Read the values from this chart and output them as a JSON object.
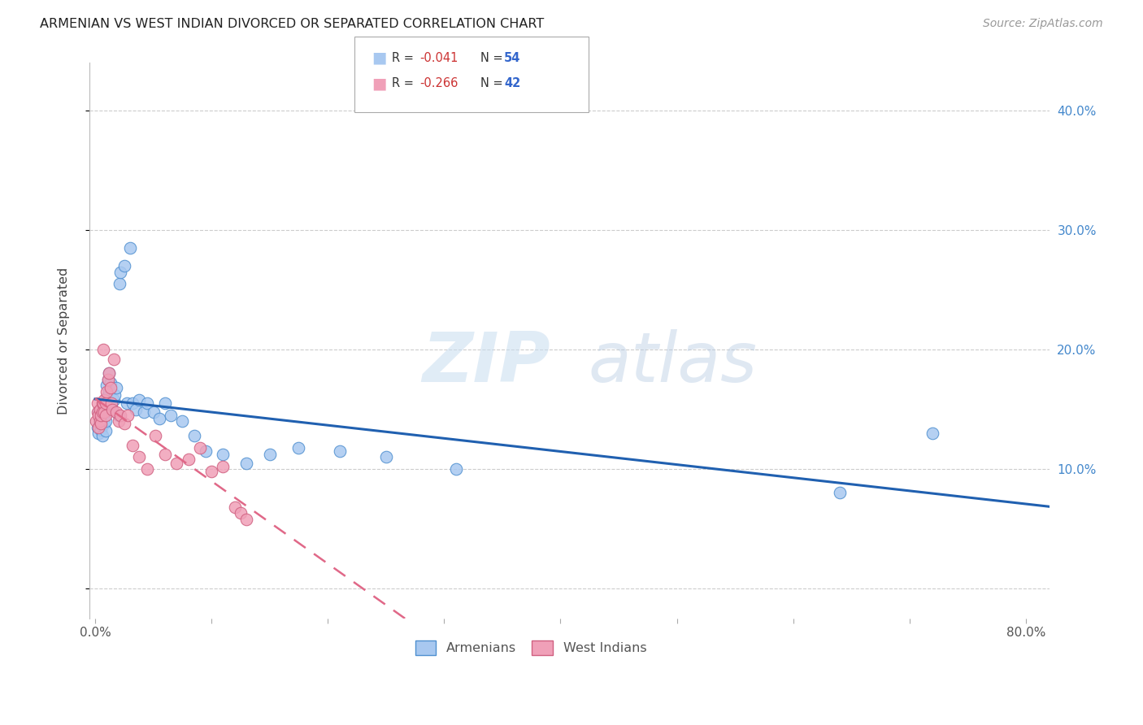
{
  "title": "ARMENIAN VS WEST INDIAN DIVORCED OR SEPARATED CORRELATION CHART",
  "source": "Source: ZipAtlas.com",
  "ylabel": "Divorced or Separated",
  "watermark_zip": "ZIP",
  "watermark_atlas": "atlas",
  "x_ticks": [
    0.0,
    0.1,
    0.2,
    0.3,
    0.4,
    0.5,
    0.6,
    0.7,
    0.8
  ],
  "x_tick_labels": [
    "0.0%",
    "",
    "",
    "",
    "",
    "",
    "",
    "",
    "80.0%"
  ],
  "y_tick_positions": [
    0.0,
    0.1,
    0.2,
    0.3,
    0.4
  ],
  "y_tick_labels": [
    "",
    "10.0%",
    "20.0%",
    "30.0%",
    "40.0%"
  ],
  "xlim": [
    -0.005,
    0.82
  ],
  "ylim": [
    -0.025,
    0.44
  ],
  "legend_R1": "R = -0.041",
  "legend_N1": "N = 54",
  "legend_R2": "R = -0.266",
  "legend_N2": "N = 42",
  "armenian_fill": "#a8c8f0",
  "armenian_edge": "#5090d0",
  "west_indian_fill": "#f0a0b8",
  "west_indian_edge": "#d06080",
  "armenian_line_color": "#2060b0",
  "west_indian_line_color": "#e06888",
  "background_color": "#ffffff",
  "armenians_x": [
    0.002,
    0.003,
    0.003,
    0.004,
    0.004,
    0.005,
    0.005,
    0.005,
    0.006,
    0.006,
    0.007,
    0.007,
    0.008,
    0.008,
    0.009,
    0.009,
    0.01,
    0.01,
    0.011,
    0.012,
    0.012,
    0.013,
    0.014,
    0.015,
    0.016,
    0.017,
    0.018,
    0.02,
    0.021,
    0.022,
    0.025,
    0.027,
    0.03,
    0.032,
    0.035,
    0.038,
    0.042,
    0.045,
    0.05,
    0.055,
    0.06,
    0.065,
    0.075,
    0.085,
    0.095,
    0.11,
    0.13,
    0.15,
    0.175,
    0.21,
    0.25,
    0.31,
    0.64,
    0.72
  ],
  "armenians_y": [
    0.135,
    0.13,
    0.148,
    0.14,
    0.145,
    0.133,
    0.138,
    0.143,
    0.128,
    0.142,
    0.15,
    0.155,
    0.138,
    0.145,
    0.132,
    0.14,
    0.16,
    0.17,
    0.175,
    0.165,
    0.18,
    0.172,
    0.155,
    0.15,
    0.158,
    0.162,
    0.168,
    0.145,
    0.255,
    0.265,
    0.27,
    0.155,
    0.285,
    0.155,
    0.15,
    0.158,
    0.148,
    0.155,
    0.148,
    0.142,
    0.155,
    0.145,
    0.14,
    0.128,
    0.115,
    0.112,
    0.105,
    0.112,
    0.118,
    0.115,
    0.11,
    0.1,
    0.08,
    0.13
  ],
  "west_indians_x": [
    0.001,
    0.002,
    0.002,
    0.003,
    0.003,
    0.004,
    0.004,
    0.005,
    0.005,
    0.006,
    0.006,
    0.007,
    0.007,
    0.008,
    0.008,
    0.009,
    0.009,
    0.01,
    0.011,
    0.012,
    0.013,
    0.014,
    0.015,
    0.016,
    0.018,
    0.02,
    0.022,
    0.025,
    0.028,
    0.032,
    0.038,
    0.045,
    0.052,
    0.06,
    0.07,
    0.08,
    0.09,
    0.1,
    0.11,
    0.12,
    0.125,
    0.13
  ],
  "west_indians_y": [
    0.14,
    0.155,
    0.148,
    0.135,
    0.145,
    0.14,
    0.15,
    0.138,
    0.145,
    0.155,
    0.148,
    0.2,
    0.155,
    0.148,
    0.158,
    0.145,
    0.155,
    0.165,
    0.175,
    0.18,
    0.168,
    0.155,
    0.15,
    0.192,
    0.148,
    0.14,
    0.145,
    0.138,
    0.145,
    0.12,
    0.11,
    0.1,
    0.128,
    0.112,
    0.105,
    0.108,
    0.118,
    0.098,
    0.102,
    0.068,
    0.063,
    0.058
  ]
}
